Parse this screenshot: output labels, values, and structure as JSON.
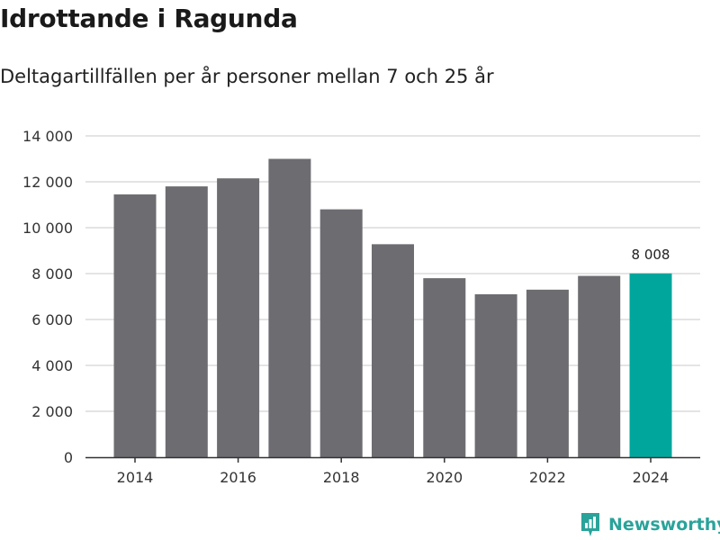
{
  "header": {
    "title": "Idrottande i Ragunda",
    "subtitle": "Deltagartillfällen per år personer mellan 7 och 25 år"
  },
  "brand": {
    "name": "Newsworthy",
    "icon": "newsworthy-logo-icon",
    "color": "#2aa39a"
  },
  "colors": {
    "bar": "#6d6c71",
    "highlight": "#00a69c",
    "grid": "#dcdcdc",
    "axis": "#333333"
  },
  "chart_data": {
    "type": "bar",
    "x": [
      2014,
      2015,
      2016,
      2017,
      2018,
      2019,
      2020,
      2021,
      2022,
      2023,
      2024
    ],
    "values": [
      11450,
      11800,
      12150,
      13000,
      10800,
      9280,
      7800,
      7100,
      7300,
      7900,
      8008
    ],
    "highlight_index": 10,
    "data_labels": [
      {
        "index": 10,
        "text": "8 008"
      }
    ],
    "x_tick_labels": [
      "2014",
      "2016",
      "2018",
      "2020",
      "2022",
      "2024"
    ],
    "y_tick_values": [
      0,
      2000,
      4000,
      6000,
      8000,
      10000,
      12000,
      14000
    ],
    "y_tick_labels": [
      "0",
      "2 000",
      "4 000",
      "6 000",
      "8 000",
      "10 000",
      "12 000",
      "14 000"
    ],
    "ylim": [
      0,
      14000
    ],
    "grid": true,
    "legend": "none"
  }
}
